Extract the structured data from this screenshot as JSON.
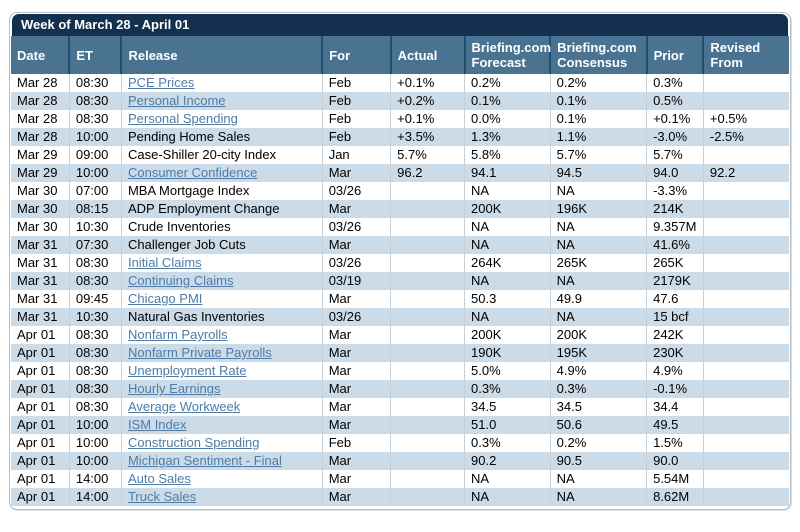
{
  "title_bar": {
    "label": "Week of March 28 - April 01"
  },
  "colors": {
    "title_bar_bg": "#14304f",
    "header_bg": "#4a7392",
    "header_divider": "#20506f",
    "alt_row_bg": "#ccdbe8",
    "link_color": "#4e7ca6",
    "frame_border": "#b7bfc8",
    "text_color": "#000000"
  },
  "table": {
    "columns": [
      {
        "key": "date",
        "label": "Date"
      },
      {
        "key": "et",
        "label": "ET"
      },
      {
        "key": "release",
        "label": "Release"
      },
      {
        "key": "for",
        "label": "For"
      },
      {
        "key": "actual",
        "label": "Actual"
      },
      {
        "key": "forecast",
        "label": "Briefing.com Forecast"
      },
      {
        "key": "consensus",
        "label": "Briefing.com Consensus"
      },
      {
        "key": "prior",
        "label": "Prior"
      },
      {
        "key": "revised",
        "label": "Revised From"
      }
    ],
    "rows": [
      {
        "date": "Mar 28",
        "et": "08:30",
        "release": "PCE Prices",
        "release_is_link": true,
        "for": "Feb",
        "actual": "+0.1%",
        "forecast": "0.2%",
        "consensus": "0.2%",
        "prior": "0.3%",
        "revised": ""
      },
      {
        "date": "Mar 28",
        "et": "08:30",
        "release": "Personal Income",
        "release_is_link": true,
        "for": "Feb",
        "actual": "+0.2%",
        "forecast": "0.1%",
        "consensus": "0.1%",
        "prior": "0.5%",
        "revised": ""
      },
      {
        "date": "Mar 28",
        "et": "08:30",
        "release": "Personal Spending",
        "release_is_link": true,
        "for": "Feb",
        "actual": "+0.1%",
        "forecast": "0.0%",
        "consensus": "0.1%",
        "prior": "+0.1%",
        "revised": "+0.5%"
      },
      {
        "date": "Mar 28",
        "et": "10:00",
        "release": "Pending Home Sales",
        "release_is_link": false,
        "for": "Feb",
        "actual": "+3.5%",
        "forecast": "1.3%",
        "consensus": "1.1%",
        "prior": "-3.0%",
        "revised": "-2.5%"
      },
      {
        "date": "Mar 29",
        "et": "09:00",
        "release": "Case-Shiller 20-city Index",
        "release_is_link": false,
        "for": "Jan",
        "actual": "5.7%",
        "forecast": "5.8%",
        "consensus": "5.7%",
        "prior": "5.7%",
        "revised": ""
      },
      {
        "date": "Mar 29",
        "et": "10:00",
        "release": "Consumer Confidence",
        "release_is_link": true,
        "for": "Mar",
        "actual": "96.2",
        "forecast": "94.1",
        "consensus": "94.5",
        "prior": "94.0",
        "revised": "92.2"
      },
      {
        "date": "Mar 30",
        "et": "07:00",
        "release": "MBA Mortgage Index",
        "release_is_link": false,
        "for": "03/26",
        "actual": "",
        "forecast": "NA",
        "consensus": "NA",
        "prior": "-3.3%",
        "revised": ""
      },
      {
        "date": "Mar 30",
        "et": "08:15",
        "release": "ADP Employment Change",
        "release_is_link": false,
        "for": "Mar",
        "actual": "",
        "forecast": "200K",
        "consensus": "196K",
        "prior": "214K",
        "revised": ""
      },
      {
        "date": "Mar 30",
        "et": "10:30",
        "release": "Crude Inventories",
        "release_is_link": false,
        "for": "03/26",
        "actual": "",
        "forecast": "NA",
        "consensus": "NA",
        "prior": "9.357M",
        "revised": ""
      },
      {
        "date": "Mar 31",
        "et": "07:30",
        "release": "Challenger Job Cuts",
        "release_is_link": false,
        "for": "Mar",
        "actual": "",
        "forecast": "NA",
        "consensus": "NA",
        "prior": "41.6%",
        "revised": ""
      },
      {
        "date": "Mar 31",
        "et": "08:30",
        "release": "Initial Claims",
        "release_is_link": true,
        "for": "03/26",
        "actual": "",
        "forecast": "264K",
        "consensus": "265K",
        "prior": "265K",
        "revised": ""
      },
      {
        "date": "Mar 31",
        "et": "08:30",
        "release": "Continuing Claims",
        "release_is_link": true,
        "for": "03/19",
        "actual": "",
        "forecast": "NA",
        "consensus": "NA",
        "prior": "2179K",
        "revised": ""
      },
      {
        "date": "Mar 31",
        "et": "09:45",
        "release": "Chicago PMI",
        "release_is_link": true,
        "for": "Mar",
        "actual": "",
        "forecast": "50.3",
        "consensus": "49.9",
        "prior": "47.6",
        "revised": ""
      },
      {
        "date": "Mar 31",
        "et": "10:30",
        "release": "Natural Gas Inventories",
        "release_is_link": false,
        "for": "03/26",
        "actual": "",
        "forecast": "NA",
        "consensus": "NA",
        "prior": "15 bcf",
        "revised": ""
      },
      {
        "date": "Apr 01",
        "et": "08:30",
        "release": "Nonfarm Payrolls",
        "release_is_link": true,
        "for": "Mar",
        "actual": "",
        "forecast": "200K",
        "consensus": "200K",
        "prior": "242K",
        "revised": ""
      },
      {
        "date": "Apr 01",
        "et": "08:30",
        "release": "Nonfarm Private Payrolls",
        "release_is_link": true,
        "for": "Mar",
        "actual": "",
        "forecast": "190K",
        "consensus": "195K",
        "prior": "230K",
        "revised": ""
      },
      {
        "date": "Apr 01",
        "et": "08:30",
        "release": "Unemployment Rate",
        "release_is_link": true,
        "for": "Mar",
        "actual": "",
        "forecast": "5.0%",
        "consensus": "4.9%",
        "prior": "4.9%",
        "revised": ""
      },
      {
        "date": "Apr 01",
        "et": "08:30",
        "release": "Hourly Earnings",
        "release_is_link": true,
        "for": "Mar",
        "actual": "",
        "forecast": "0.3%",
        "consensus": "0.3%",
        "prior": "-0.1%",
        "revised": ""
      },
      {
        "date": "Apr 01",
        "et": "08:30",
        "release": "Average Workweek",
        "release_is_link": true,
        "for": "Mar",
        "actual": "",
        "forecast": "34.5",
        "consensus": "34.5",
        "prior": "34.4",
        "revised": ""
      },
      {
        "date": "Apr 01",
        "et": "10:00",
        "release": "ISM Index",
        "release_is_link": true,
        "for": "Mar",
        "actual": "",
        "forecast": "51.0",
        "consensus": "50.6",
        "prior": "49.5",
        "revised": ""
      },
      {
        "date": "Apr 01",
        "et": "10:00",
        "release": "Construction Spending",
        "release_is_link": true,
        "for": "Feb",
        "actual": "",
        "forecast": "0.3%",
        "consensus": "0.2%",
        "prior": "1.5%",
        "revised": ""
      },
      {
        "date": "Apr 01",
        "et": "10:00",
        "release": "Michigan Sentiment - Final",
        "release_is_link": true,
        "for": "Mar",
        "actual": "",
        "forecast": "90.2",
        "consensus": "90.5",
        "prior": "90.0",
        "revised": ""
      },
      {
        "date": "Apr 01",
        "et": "14:00",
        "release": "Auto Sales",
        "release_is_link": true,
        "for": "Mar",
        "actual": "",
        "forecast": "NA",
        "consensus": "NA",
        "prior": "5.54M",
        "revised": ""
      },
      {
        "date": "Apr 01",
        "et": "14:00",
        "release": "Truck Sales",
        "release_is_link": true,
        "for": "Mar",
        "actual": "",
        "forecast": "NA",
        "consensus": "NA",
        "prior": "8.62M",
        "revised": ""
      }
    ]
  }
}
